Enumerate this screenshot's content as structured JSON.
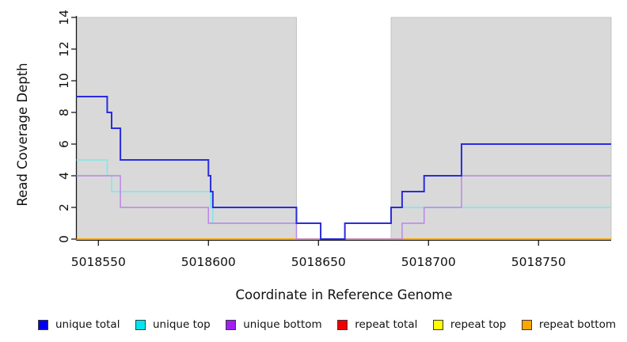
{
  "figure": {
    "xlabel": "Coordinate in Reference Genome",
    "ylabel": "Read Coverage Depth"
  },
  "chart_data": {
    "type": "line",
    "subtype": "step",
    "title": "",
    "xlabel": "Coordinate in Reference Genome",
    "ylabel": "Read Coverage Depth",
    "xlim": [
      5018540,
      5018783
    ],
    "ylim": [
      0,
      14
    ],
    "x_ticks": [
      5018550,
      5018600,
      5018650,
      5018700,
      5018750
    ],
    "y_ticks": [
      0,
      2,
      4,
      6,
      8,
      10,
      12,
      14
    ],
    "grid": false,
    "legend_position": "bottom",
    "background_bands": {
      "color": "#D9D9D9",
      "edge_color": "#C4C4C4",
      "regions": [
        [
          5018540,
          5018640
        ],
        [
          5018683,
          5018783
        ]
      ]
    },
    "axis_color": "#1a1a1a",
    "series": [
      {
        "name": "unique total",
        "color": "#0000EE",
        "line_color": "#2B2BDF",
        "line_width": 2.0,
        "steps": [
          [
            5018540,
            9
          ],
          [
            5018554,
            8
          ],
          [
            5018556,
            7
          ],
          [
            5018560,
            5
          ],
          [
            5018600,
            4
          ],
          [
            5018601,
            3
          ],
          [
            5018602,
            2
          ],
          [
            5018640,
            1
          ],
          [
            5018651,
            0
          ],
          [
            5018662,
            1
          ],
          [
            5018683,
            2
          ],
          [
            5018688,
            3
          ],
          [
            5018698,
            4
          ],
          [
            5018715,
            6
          ]
        ]
      },
      {
        "name": "unique top",
        "color": "#00E5EE",
        "line_color": "#79E9EC",
        "line_width": 1.5,
        "steps": [
          [
            5018540,
            5
          ],
          [
            5018554,
            4
          ],
          [
            5018556,
            3
          ],
          [
            5018601,
            2
          ],
          [
            5018602,
            1
          ],
          [
            5018651,
            0
          ],
          [
            5018662,
            1
          ],
          [
            5018683,
            2
          ]
        ]
      },
      {
        "name": "unique bottom",
        "color": "#A020F0",
        "line_color": "#BB86E8",
        "line_width": 1.5,
        "steps": [
          [
            5018540,
            4
          ],
          [
            5018560,
            2
          ],
          [
            5018600,
            1
          ],
          [
            5018640,
            0
          ],
          [
            5018688,
            1
          ],
          [
            5018698,
            2
          ],
          [
            5018715,
            4
          ]
        ]
      },
      {
        "name": "repeat total",
        "color": "#EE0000",
        "line_color": "#EE0000",
        "line_width": 1.4,
        "steps": [
          [
            5018540,
            0
          ]
        ]
      },
      {
        "name": "repeat top",
        "color": "#FFFF00",
        "line_color": "#FFFF00",
        "line_width": 1.4,
        "steps": [
          [
            5018540,
            0
          ]
        ]
      },
      {
        "name": "repeat bottom",
        "color": "#FFA500",
        "line_color": "#FFA500",
        "line_width": 1.6,
        "steps": [
          [
            5018540,
            0
          ]
        ]
      }
    ],
    "draw_order": [
      "repeat total",
      "repeat top",
      "repeat bottom",
      "unique top",
      "unique bottom",
      "unique total"
    ]
  }
}
